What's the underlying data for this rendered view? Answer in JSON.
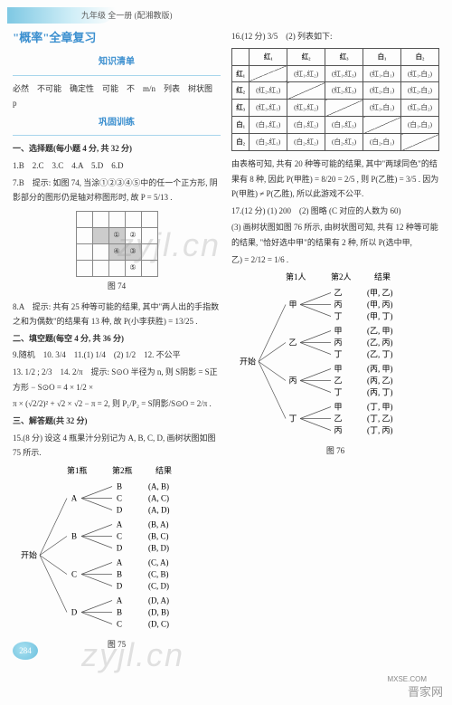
{
  "header": {
    "grade": "九年级 全一册 (配湘教版)"
  },
  "left": {
    "title": "\"概率\"全章复习",
    "sec1": "知识清单",
    "concepts": "必然　不可能　确定性　可能　不　m/n　列表　树状图　p",
    "sec2": "巩固训练",
    "h_choice": "一、选择题(每小题 4 分, 共 32 分)",
    "ans_line": "1.B　2.C　3.C　4.A　5.D　6.D",
    "q7": "7.B　提示: 如图 74, 当涂①②③④⑤中的任一个正方形, 阴影部分的图形仍是轴对称图形时, 故 P = 5/13 .",
    "fig74": {
      "caption": "图 74",
      "cells": [
        [
          "",
          "",
          "",
          "",
          ""
        ],
        [
          "",
          "",
          "①",
          "②",
          ""
        ],
        [
          "",
          "",
          "④",
          "③",
          ""
        ],
        [
          "",
          "",
          "",
          "⑤",
          ""
        ]
      ],
      "shaded": [
        [
          1,
          1
        ],
        [
          1,
          2
        ],
        [
          2,
          2
        ],
        [
          2,
          3
        ]
      ]
    },
    "q8": "8.A　提示: 共有 25 种等可能的结果, 其中\"两人出的手指数之和为偶数\"的结果有 13 种, 故 P(小李获胜) = 13/25 .",
    "h_fill": "二、填空题(每空 4 分, 共 36 分)",
    "q9_12": "9.随机　10. 3/4　11.(1) 1/4　(2) 1/2　12. 不公平",
    "q13_14": "13. 1/2 ; 2/3　14. 2/π　提示: S⊙O 半径为 n, 则 S阴影 = S正方形 − S⊙O = 4 × 1/2 ×",
    "q14b": "π × (√2/2)² + √2 × √2 − π = 2, 则 P₁/P₂ = S阴影/S⊙O = 2/π .",
    "h_solve": "三、解答题(共 32 分)",
    "q15": "15.(8 分) 设这 4 瓶果汁分别记为 A, B, C, D, 画树状图如图 75 所示.",
    "tree75": {
      "root": "开始",
      "col1": "第1瓶",
      "col2": "第2瓶",
      "col3": "结果",
      "branches": [
        {
          "l1": "A",
          "children": [
            [
              "B",
              "(A, B)"
            ],
            [
              "C",
              "(A, C)"
            ],
            [
              "D",
              "(A, D)"
            ]
          ]
        },
        {
          "l1": "B",
          "children": [
            [
              "A",
              "(B, A)"
            ],
            [
              "C",
              "(B, C)"
            ],
            [
              "D",
              "(B, D)"
            ]
          ]
        },
        {
          "l1": "C",
          "children": [
            [
              "A",
              "(C, A)"
            ],
            [
              "B",
              "(C, B)"
            ],
            [
              "D",
              "(C, D)"
            ]
          ]
        },
        {
          "l1": "D",
          "children": [
            [
              "A",
              "(D, A)"
            ],
            [
              "B",
              "(D, B)"
            ],
            [
              "C",
              "(D, C)"
            ]
          ]
        }
      ],
      "caption": "图 75"
    }
  },
  "right": {
    "q16": "16.(12 分) 3/5　(2) 列表如下:",
    "table": {
      "headers": [
        "",
        "红₁",
        "红₂",
        "红₃",
        "白₁",
        "白₂"
      ],
      "rows": [
        [
          "红₁",
          "",
          "(红₁,红₂)",
          "(红₁,红₃)",
          "(红₁,白₁)",
          "(红₁,白₂)"
        ],
        [
          "红₂",
          "(红₂,红₁)",
          "",
          "(红₂,红₃)",
          "(红₂,白₁)",
          "(红₂,白₂)"
        ],
        [
          "红₃",
          "(红₃,红₁)",
          "(红₃,红₂)",
          "",
          "(红₃,白₁)",
          "(红₃,白₂)"
        ],
        [
          "白₁",
          "(白₁,红₁)",
          "(白₁,红₂)",
          "(白₁,红₃)",
          "",
          "(白₁,白₂)"
        ],
        [
          "白₂",
          "(白₂,红₁)",
          "(白₂,红₂)",
          "(白₂,红₃)",
          "(白₂,白₁)",
          ""
        ]
      ]
    },
    "after_table": "由表格可知, 共有 20 种等可能的结果, 其中\"两球同色\"的结果有 8 种, 因此 P(甲胜) = 8/20 = 2/5 , 则 P(乙胜) = 3/5 . 因为 P(甲胜) ≠ P(乙胜), 所以此游戏不公平.",
    "q17a": "17.(12 分) (1) 200　(2) 图略 (C 对应的人数为 60)",
    "q17b": "(3) 画树状图如图 76 所示, 由树状图可知, 共有 12 种等可能的结果, \"恰好选中甲\"的结果有 2 种, 所以 P(选中甲,",
    "q17c": "乙) = 2/12 = 1/6 .",
    "tree76": {
      "root": "开始",
      "col1": "第1人",
      "col2": "第2人",
      "col3": "结果",
      "branches": [
        {
          "l1": "甲",
          "children": [
            [
              "乙",
              "(甲, 乙)"
            ],
            [
              "丙",
              "(甲, 丙)"
            ],
            [
              "丁",
              "(甲, 丁)"
            ]
          ]
        },
        {
          "l1": "乙",
          "children": [
            [
              "甲",
              "(乙, 甲)"
            ],
            [
              "丙",
              "(乙, 丙)"
            ],
            [
              "丁",
              "(乙, 丁)"
            ]
          ]
        },
        {
          "l1": "丙",
          "children": [
            [
              "甲",
              "(丙, 甲)"
            ],
            [
              "乙",
              "(丙, 乙)"
            ],
            [
              "丁",
              "(丙, 丁)"
            ]
          ]
        },
        {
          "l1": "丁",
          "children": [
            [
              "甲",
              "(丁, 甲)"
            ],
            [
              "乙",
              "(丁, 乙)"
            ],
            [
              "丙",
              "(丁, 丙)"
            ]
          ]
        }
      ],
      "caption": "图 76"
    }
  },
  "page": "284",
  "watermarks": [
    "zyjl.cn",
    "zyjl.cn"
  ],
  "footer_right": "MXSE.COM",
  "brand": "晋家网"
}
